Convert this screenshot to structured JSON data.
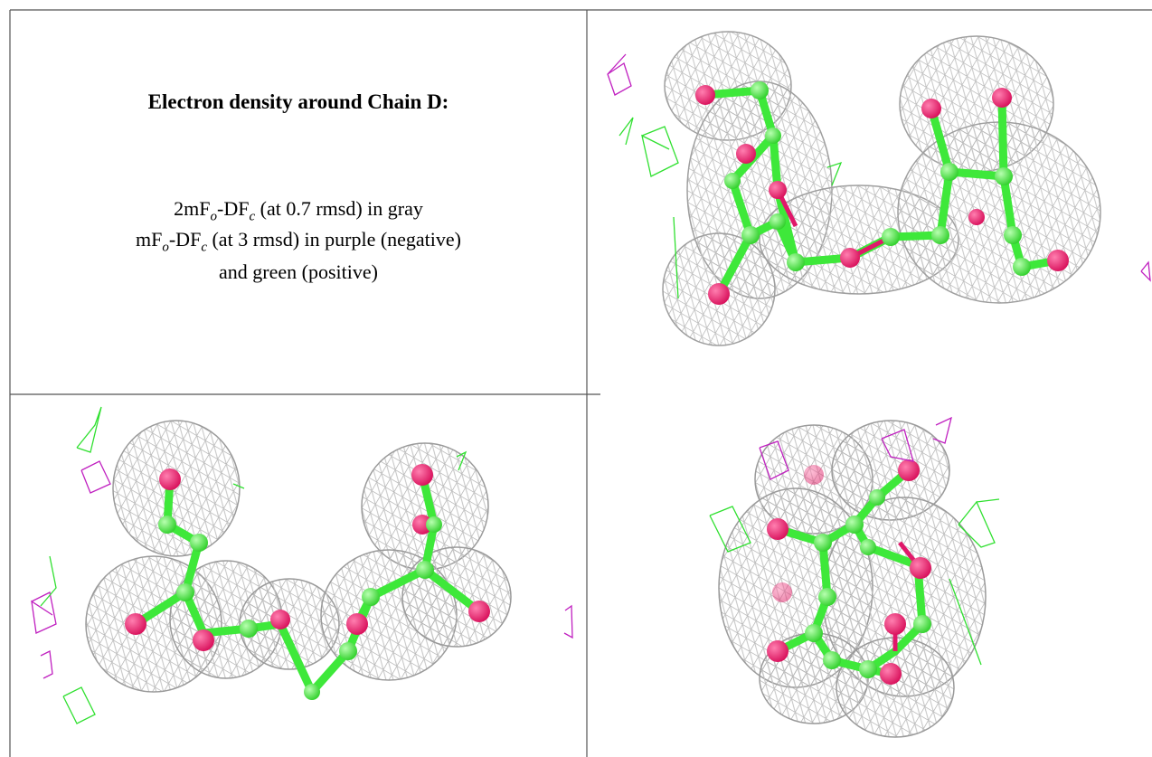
{
  "panel": {
    "title": "Electron density around Chain D:",
    "caption_lines": [
      [
        "2mF",
        "o",
        "-DF",
        "c",
        " (at 0.7 rmsd) in gray"
      ],
      [
        "mF",
        "o",
        "-DF",
        "c",
        " (at 3 rmsd) in purple (negative)"
      ],
      [
        "and green (positive)"
      ]
    ]
  }
}
